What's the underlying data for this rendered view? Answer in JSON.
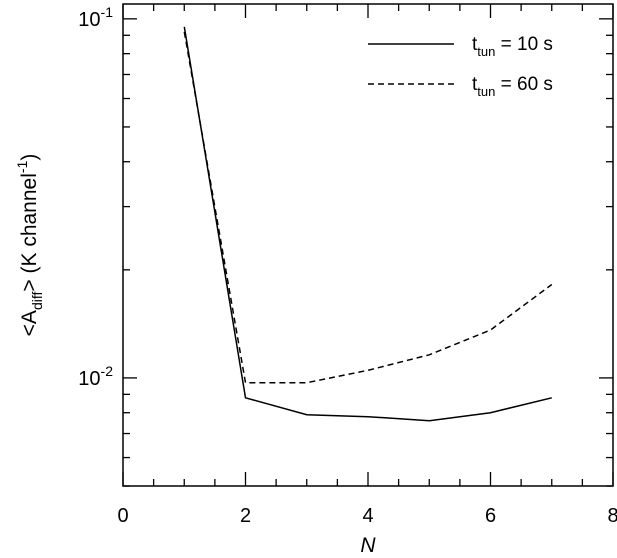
{
  "chart_data": {
    "type": "line",
    "xlabel": "N",
    "ylabel": {
      "open": "<A",
      "sub": "diff",
      "middle": "> (K channel",
      "sup": "-1",
      "close": ")"
    },
    "xlim": [
      0,
      8
    ],
    "ylim": [
      0.005,
      0.11
    ],
    "yscale": "log",
    "x_ticks": [
      "0",
      "2",
      "4",
      "6",
      "8"
    ],
    "y_ticks": [
      {
        "base": "10",
        "exp": "-1"
      },
      {
        "base": "10",
        "exp": "-2"
      }
    ],
    "grid": false,
    "legend_position": "top-right",
    "series": [
      {
        "name": {
          "pre": "t",
          "sub": "tun",
          "post": " = 10 s"
        },
        "style": "solid",
        "x": [
          1,
          2,
          3,
          4,
          5,
          6,
          7
        ],
        "y": [
          0.095,
          0.0088,
          0.0079,
          0.0078,
          0.0076,
          0.008,
          0.0088
        ]
      },
      {
        "name": {
          "pre": "t",
          "sub": "tun",
          "post": " = 60 s"
        },
        "style": "dashed",
        "x": [
          1,
          2,
          3,
          4,
          5,
          6,
          7
        ],
        "y": [
          0.092,
          0.0097,
          0.0097,
          0.0105,
          0.0116,
          0.0136,
          0.0182
        ]
      }
    ]
  }
}
